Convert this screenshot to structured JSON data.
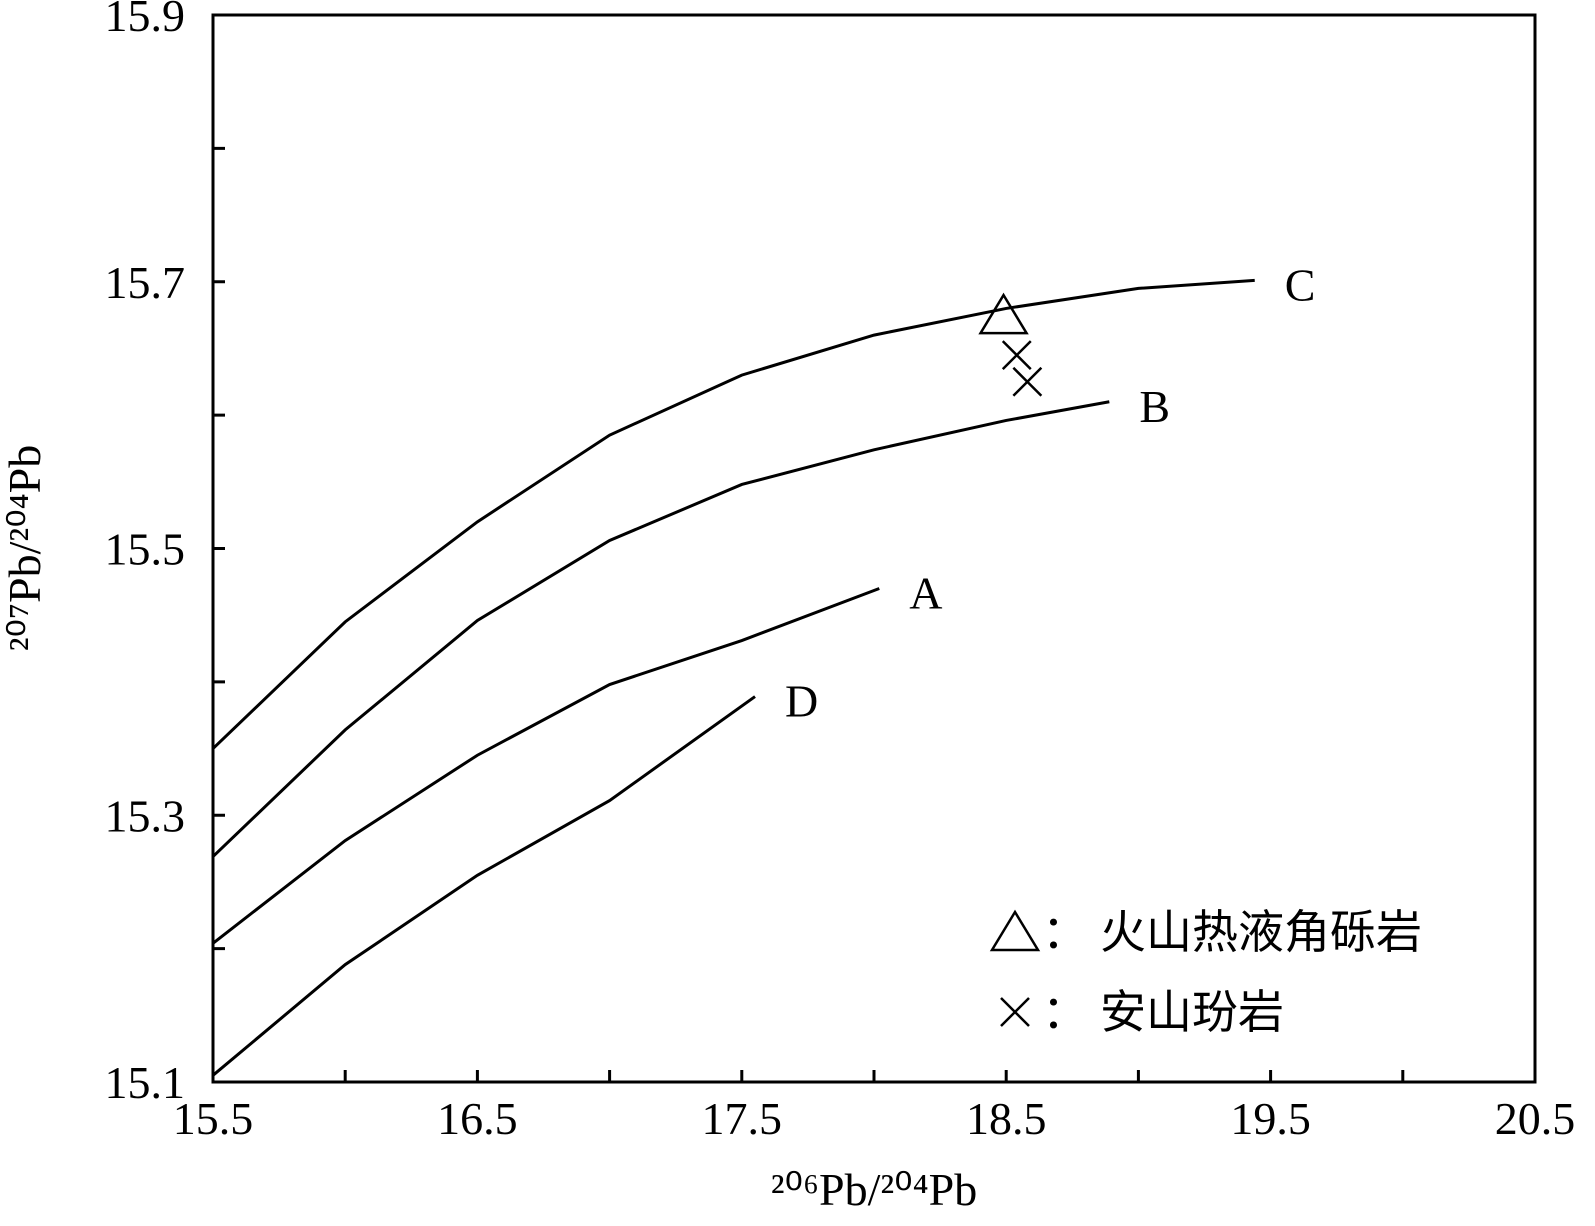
{
  "chart_data": {
    "type": "line",
    "xlabel": "²⁰⁶Pb/²⁰⁴Pb",
    "ylabel": "²⁰⁷Pb/²⁰⁴Pb",
    "xlim": [
      15.5,
      20.5
    ],
    "xticks": [
      15.5,
      16.5,
      17.5,
      18.5,
      19.5,
      20.5
    ],
    "xminor": [
      16,
      17,
      18,
      19,
      20
    ],
    "ylim": [
      15.1,
      15.9
    ],
    "yticks": [
      15.1,
      15.3,
      15.5,
      15.7,
      15.9
    ],
    "yminor": [
      15.2,
      15.4,
      15.6,
      15.8
    ],
    "color": "#000000",
    "curves": [
      {
        "name": "C",
        "x": [
          15.5,
          16.0,
          16.5,
          17.0,
          17.5,
          18.0,
          18.5,
          19.0,
          19.44
        ],
        "values": [
          15.35,
          15.445,
          15.52,
          15.585,
          15.63,
          15.66,
          15.68,
          15.695,
          15.701
        ]
      },
      {
        "name": "B",
        "x": [
          15.5,
          16.0,
          16.5,
          17.0,
          17.5,
          18.0,
          18.5,
          18.89
        ],
        "values": [
          15.269,
          15.364,
          15.446,
          15.506,
          15.548,
          15.574,
          15.596,
          15.61
        ]
      },
      {
        "name": "A",
        "x": [
          15.5,
          16.0,
          16.5,
          17.0,
          17.5,
          18.02
        ],
        "values": [
          15.204,
          15.281,
          15.345,
          15.398,
          15.431,
          15.47
        ]
      },
      {
        "name": "D",
        "x": [
          15.5,
          16.0,
          16.5,
          17.0,
          17.55
        ],
        "values": [
          15.105,
          15.188,
          15.255,
          15.311,
          15.389
        ]
      }
    ],
    "legend_separator": "：",
    "series": [
      {
        "name": "火山热液角砾岩",
        "marker": "triangle",
        "x": [
          18.49
        ],
        "values": [
          15.675
        ]
      },
      {
        "name": "安山玢岩",
        "marker": "cross",
        "x": [
          18.54,
          18.58
        ],
        "values": [
          15.645,
          15.625
        ]
      }
    ]
  }
}
